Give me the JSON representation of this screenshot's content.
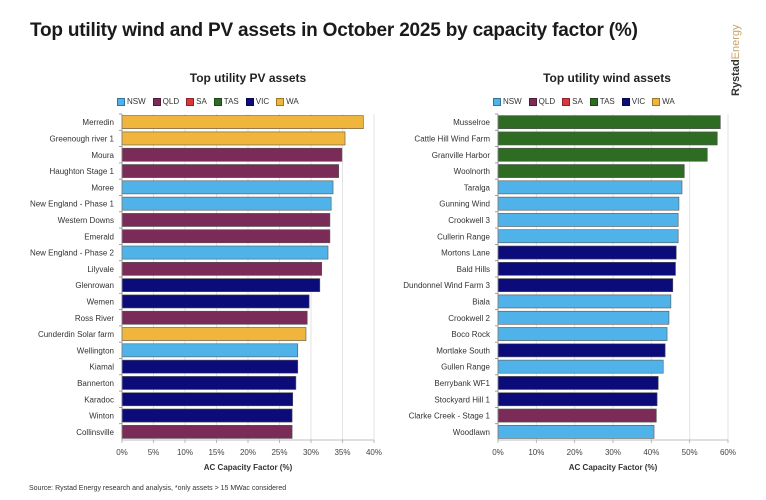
{
  "title": "Top utility wind and PV assets in October 2025 by capacity factor (%)",
  "brand": {
    "part1": "Rystad",
    "part2": "Energy"
  },
  "source": "Source: Rystad Energy research and analysis, *only assets > 15 MWac considered",
  "state_colors": {
    "NSW": "#4fb3ea",
    "QLD": "#7a2b57",
    "SA": "#d9363e",
    "TAS": "#2e6b23",
    "VIC": "#0b0b7a",
    "WA": "#f0b53d"
  },
  "chart_data": [
    {
      "type": "bar",
      "orientation": "horizontal",
      "title": "Top utility PV assets",
      "xlabel": "AC Capacity Factor (%)",
      "ylabel": "",
      "xlim": [
        0,
        40
      ],
      "xticks": [
        "0%",
        "5%",
        "10%",
        "15%",
        "20%",
        "25%",
        "30%",
        "35%",
        "40%"
      ],
      "xtick_values": [
        0,
        5,
        10,
        15,
        20,
        25,
        30,
        35,
        40
      ],
      "grid": true,
      "legend": {
        "placement": "top",
        "entries": [
          "NSW",
          "QLD",
          "SA",
          "TAS",
          "VIC",
          "WA"
        ]
      },
      "categories": [
        "Merredin",
        "Greenough river 1",
        "Moura",
        "Haughton Stage 1",
        "Moree",
        "New England - Phase 1",
        "Western Downs",
        "Emerald",
        "New England - Phase 2",
        "Lilyvale",
        "Glenrowan",
        "Wemen",
        "Ross River",
        "Cunderdin Solar farm",
        "Wellington",
        "Kiamal",
        "Bannerton",
        "Karadoc",
        "Winton",
        "Collinsville"
      ],
      "values": [
        38.3,
        35.4,
        34.9,
        34.4,
        33.5,
        33.2,
        33.0,
        33.0,
        32.7,
        31.7,
        31.4,
        29.7,
        29.4,
        29.2,
        27.9,
        27.9,
        27.6,
        27.1,
        27.0,
        27.0
      ],
      "states": [
        "WA",
        "WA",
        "QLD",
        "QLD",
        "NSW",
        "NSW",
        "QLD",
        "QLD",
        "NSW",
        "QLD",
        "VIC",
        "VIC",
        "QLD",
        "WA",
        "NSW",
        "VIC",
        "VIC",
        "VIC",
        "VIC",
        "QLD"
      ]
    },
    {
      "type": "bar",
      "orientation": "horizontal",
      "title": "Top utility wind assets",
      "xlabel": "AC Capacity Factor (%)",
      "ylabel": "",
      "xlim": [
        0,
        60
      ],
      "xticks": [
        "0%",
        "10%",
        "20%",
        "30%",
        "40%",
        "50%",
        "60%"
      ],
      "xtick_values": [
        0,
        10,
        20,
        30,
        40,
        50,
        60
      ],
      "grid": true,
      "legend": {
        "placement": "top",
        "entries": [
          "NSW",
          "QLD",
          "SA",
          "TAS",
          "VIC",
          "WA"
        ]
      },
      "categories": [
        "Musselroe",
        "Cattle Hill Wind Farm",
        "Granville Harbor",
        "Woolnorth",
        "Taralga",
        "Gunning Wind",
        "Crookwell 3",
        "Cullerin Range",
        "Mortons Lane",
        "Bald Hills",
        "Dundonnel Wind Farm 3",
        "Biala",
        "Crookwell 2",
        "Boco Rock",
        "Mortlake South",
        "Gullen Range",
        "Berrybank WF1",
        "Stockyard Hill 1",
        "Clarke Creek - Stage 1",
        "Woodlawn"
      ],
      "values": [
        58.0,
        57.2,
        54.6,
        48.6,
        48.0,
        47.2,
        47.0,
        47.0,
        46.5,
        46.3,
        45.6,
        45.1,
        44.6,
        44.1,
        43.6,
        43.1,
        41.8,
        41.5,
        41.3,
        40.7
      ],
      "states": [
        "TAS",
        "TAS",
        "TAS",
        "TAS",
        "NSW",
        "NSW",
        "NSW",
        "NSW",
        "VIC",
        "VIC",
        "VIC",
        "NSW",
        "NSW",
        "NSW",
        "VIC",
        "NSW",
        "VIC",
        "VIC",
        "QLD",
        "NSW"
      ]
    }
  ]
}
